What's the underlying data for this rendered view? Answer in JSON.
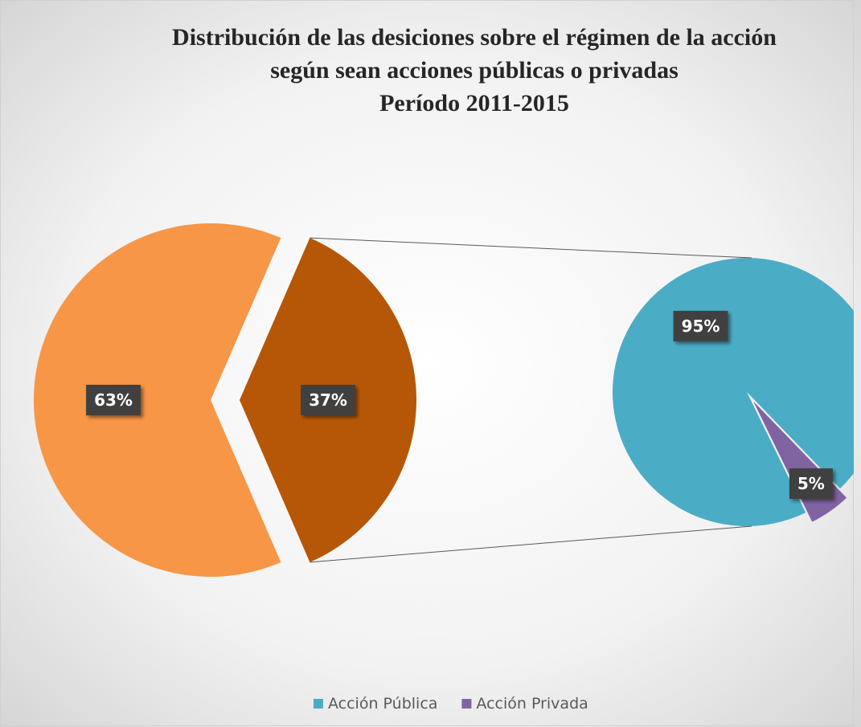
{
  "chart_data": [
    {
      "type": "pie",
      "title": [
        "Distribución de las desiciones sobre el régimen de la acción",
        "según sean acciones públicas o privadas",
        "Período 2011-2015"
      ],
      "categories": [
        null,
        null
      ],
      "values": [
        63,
        37
      ],
      "value_labels": [
        "63%",
        "37%"
      ],
      "colors": [
        "#F79646",
        "#B65708"
      ]
    },
    {
      "type": "pie",
      "categories": [
        "Acción Pública",
        "Acción Privada"
      ],
      "values": [
        95,
        5
      ],
      "value_labels": [
        "95%",
        "5%"
      ],
      "colors": [
        "#4BACC6",
        "#8064A2"
      ],
      "legend": "bottom"
    }
  ]
}
